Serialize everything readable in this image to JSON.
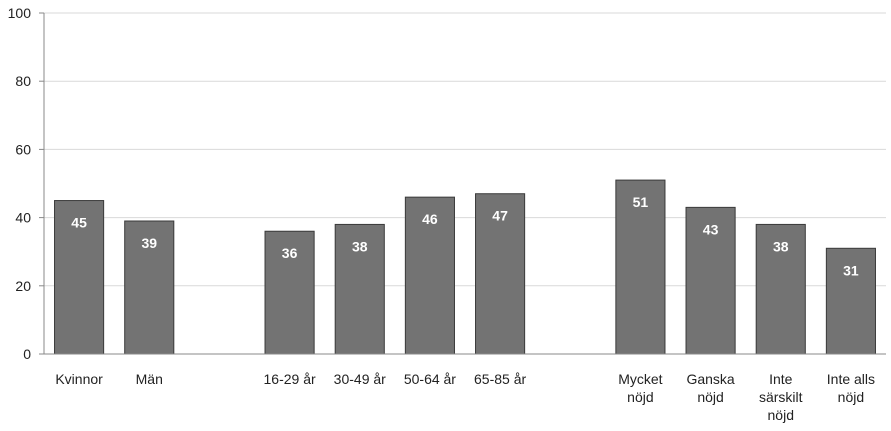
{
  "chart_data": {
    "type": "bar",
    "title": "",
    "xlabel": "",
    "ylabel": "",
    "ylim": [
      0,
      100
    ],
    "yticks": [
      0,
      20,
      40,
      60,
      80,
      100
    ],
    "grid": true,
    "legend": "none",
    "bar_color": "#737373",
    "bar_edge_color": "#3a3a3a",
    "categories": [
      "Kvinnor",
      "Män",
      "16-29 år",
      "30-49 år",
      "50-64 år",
      "65-85 år",
      "Mycket nöjd",
      "Ganska nöjd",
      "Inte särskilt nöjd",
      "Inte alls nöjd"
    ],
    "category_label_lines": [
      [
        "Kvinnor"
      ],
      [
        "Män"
      ],
      [
        "16-29 år"
      ],
      [
        "30-49 år"
      ],
      [
        "50-64 år"
      ],
      [
        "65-85 år"
      ],
      [
        "Mycket",
        "nöjd"
      ],
      [
        "Ganska",
        "nöjd"
      ],
      [
        "Inte",
        "särskilt",
        "nöjd"
      ],
      [
        "Inte alls",
        "nöjd"
      ]
    ],
    "values": [
      45,
      39,
      36,
      38,
      46,
      47,
      51,
      43,
      38,
      31
    ],
    "data_labels": [
      "45",
      "39",
      "36",
      "38",
      "46",
      "47",
      "51",
      "43",
      "38",
      "31"
    ],
    "groups": [
      {
        "members": [
          0,
          1
        ]
      },
      {
        "members": [
          2,
          3,
          4,
          5
        ]
      },
      {
        "members": [
          6,
          7,
          8,
          9
        ]
      }
    ]
  }
}
